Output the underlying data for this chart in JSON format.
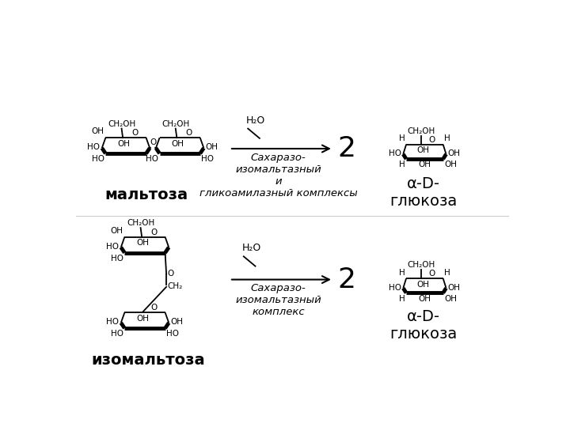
{
  "bg_color": "#ffffff",
  "top_reaction": {
    "substrate_label": "мальтоза",
    "enzyme_label": "Сахаразо-\nизомальтазный\nи\nгликоамилазный комплексы",
    "h2o_label": "H₂O",
    "product_coeff": "2",
    "product_label": "α-D-\nглюкоза"
  },
  "bottom_reaction": {
    "substrate_label": "изомальтоза",
    "enzyme_label": "Сахаразо-\nизомальтазный\nкомплекс",
    "h2o_label": "H₂O",
    "product_coeff": "2",
    "product_label": "α-D-\nглюкоза"
  },
  "line_color": "#000000",
  "font_size_label": 14,
  "font_size_enzyme": 9.5,
  "font_size_coeff": 26,
  "font_size_small": 7.5
}
